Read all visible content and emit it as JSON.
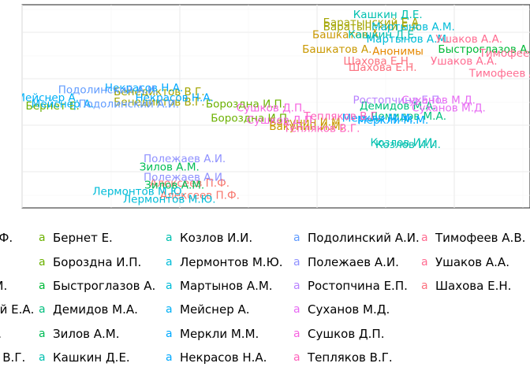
{
  "chart_data": {
    "type": "scatter",
    "title": "",
    "xlabel": "",
    "ylabel": "",
    "grid": true,
    "legend_position": "bottom",
    "legend_key_glyph": "a",
    "xlim": [
      0,
      100
    ],
    "ylim": [
      0,
      100
    ],
    "series": [
      {
        "name": "Алексеев П.Ф.",
        "color": "#F8766D",
        "points": [
          {
            "x": 33,
            "y": 12
          },
          {
            "x": 35,
            "y": 6
          }
        ]
      },
      {
        "name": "Анонимы",
        "color": "#E58700",
        "points": [
          {
            "x": 74,
            "y": 77
          }
        ]
      },
      {
        "name": "Бакунин И.М.",
        "color": "#C99800",
        "points": [
          {
            "x": 56,
            "y": 42
          },
          {
            "x": 56,
            "y": 40
          }
        ]
      },
      {
        "name": "Баратынский Е.А.",
        "color": "#A3A500",
        "points": [
          {
            "x": 69,
            "y": 91
          },
          {
            "x": 69,
            "y": 89
          }
        ]
      },
      {
        "name": "Башкатов А.",
        "color": "#C99800",
        "points": [
          {
            "x": 64,
            "y": 85
          },
          {
            "x": 62,
            "y": 78
          }
        ]
      },
      {
        "name": "Бенедиктов В.Г.",
        "color": "#A3A500",
        "points": [
          {
            "x": 27,
            "y": 57
          },
          {
            "x": 27,
            "y": 52
          }
        ]
      },
      {
        "name": "Бернет Е.",
        "color": "#6BB100",
        "points": [
          {
            "x": 6,
            "y": 50
          }
        ]
      },
      {
        "name": "Бороздна И.П.",
        "color": "#6BB100",
        "points": [
          {
            "x": 44,
            "y": 51
          },
          {
            "x": 45,
            "y": 44
          }
        ]
      },
      {
        "name": "Быстроглазов А.",
        "color": "#00BA38",
        "points": [
          {
            "x": 91,
            "y": 78
          }
        ]
      },
      {
        "name": "Демидов М.А.",
        "color": "#00BF7D",
        "points": [
          {
            "x": 74,
            "y": 50
          },
          {
            "x": 76,
            "y": 45
          }
        ]
      },
      {
        "name": "Зилов А.М.",
        "color": "#00BC56",
        "points": [
          {
            "x": 29,
            "y": 20
          },
          {
            "x": 30,
            "y": 11
          }
        ]
      },
      {
        "name": "Кашкин Д.Е.",
        "color": "#00C0AF",
        "points": [
          {
            "x": 72,
            "y": 95
          },
          {
            "x": 71,
            "y": 85
          }
        ]
      },
      {
        "name": "Козлов И.И.",
        "color": "#00C0AF",
        "points": [
          {
            "x": 75,
            "y": 32
          },
          {
            "x": 76,
            "y": 31
          }
        ]
      },
      {
        "name": "Лермонтов М.Ю.",
        "color": "#00BCD8",
        "points": [
          {
            "x": 23,
            "y": 8
          },
          {
            "x": 29,
            "y": 4
          }
        ]
      },
      {
        "name": "Мартынов А.М.",
        "color": "#00BCD8",
        "points": [
          {
            "x": 77,
            "y": 89
          },
          {
            "x": 76,
            "y": 83
          }
        ]
      },
      {
        "name": "Мейснер А.",
        "color": "#00B0F6",
        "points": [
          {
            "x": 5,
            "y": 54
          },
          {
            "x": 8,
            "y": 51
          }
        ]
      },
      {
        "name": "Меркли М.М.",
        "color": "#00A9FF",
        "points": [
          {
            "x": 70,
            "y": 44
          },
          {
            "x": 73,
            "y": 43
          }
        ]
      },
      {
        "name": "Некрасов Н.А.",
        "color": "#00A9FF",
        "points": [
          {
            "x": 24,
            "y": 59
          },
          {
            "x": 30,
            "y": 54
          }
        ]
      },
      {
        "name": "Подолинский А.И.",
        "color": "#619CFF",
        "points": [
          {
            "x": 17,
            "y": 58
          },
          {
            "x": 21,
            "y": 51
          }
        ]
      },
      {
        "name": "Полежаев А.И.",
        "color": "#8F91FF",
        "points": [
          {
            "x": 32,
            "y": 24
          },
          {
            "x": 32,
            "y": 15
          }
        ]
      },
      {
        "name": "Ростопчина Е.П.",
        "color": "#B983FF",
        "points": [
          {
            "x": 74,
            "y": 53
          }
        ]
      },
      {
        "name": "Суханов М.Д.",
        "color": "#E76BF3",
        "points": [
          {
            "x": 82,
            "y": 53
          },
          {
            "x": 84,
            "y": 49
          }
        ]
      },
      {
        "name": "Сушков Д.П.",
        "color": "#F763E0",
        "points": [
          {
            "x": 49,
            "y": 49
          },
          {
            "x": 51,
            "y": 43
          }
        ]
      },
      {
        "name": "Тепляков В.Г.",
        "color": "#FF62BC",
        "points": [
          {
            "x": 63,
            "y": 45
          },
          {
            "x": 59,
            "y": 39
          }
        ]
      },
      {
        "name": "Тимофеев А.В.",
        "color": "#FF6C91",
        "points": [
          {
            "x": 98,
            "y": 76
          },
          {
            "x": 96,
            "y": 66
          }
        ]
      },
      {
        "name": "Ушаков А.А.",
        "color": "#FF6C91",
        "points": [
          {
            "x": 88,
            "y": 83
          },
          {
            "x": 87,
            "y": 72
          }
        ]
      },
      {
        "name": "Шахова Е.Н.",
        "color": "#FC717F",
        "points": [
          {
            "x": 70,
            "y": 72
          },
          {
            "x": 71,
            "y": 69
          }
        ]
      }
    ],
    "legend_entries": [
      "Алексеев П.Ф.",
      "Анонимы",
      "Бакунин И.М.",
      "Баратынский Е.А.",
      "Башкатов А.",
      "Бенедиктов В.Г.",
      "Бернет Е.",
      "Бороздна И.П.",
      "Быстроглазов А.",
      "Демидов М.А.",
      "Зилов А.М.",
      "Кашкин Д.Е.",
      "Козлов И.И.",
      "Лермонтов М.Ю.",
      "Мартынов А.М.",
      "Мейснер А.",
      "Меркли М.М.",
      "Некрасов Н.А.",
      "Подолинский А.И.",
      "Полежаев А.И.",
      "Ростопчина Е.П.",
      "Суханов М.Д.",
      "Сушков Д.П.",
      "Тепляков В.Г.",
      "Тимофеев А.В.",
      "Ушаков А.А.",
      "Шахова Е.Н."
    ]
  }
}
